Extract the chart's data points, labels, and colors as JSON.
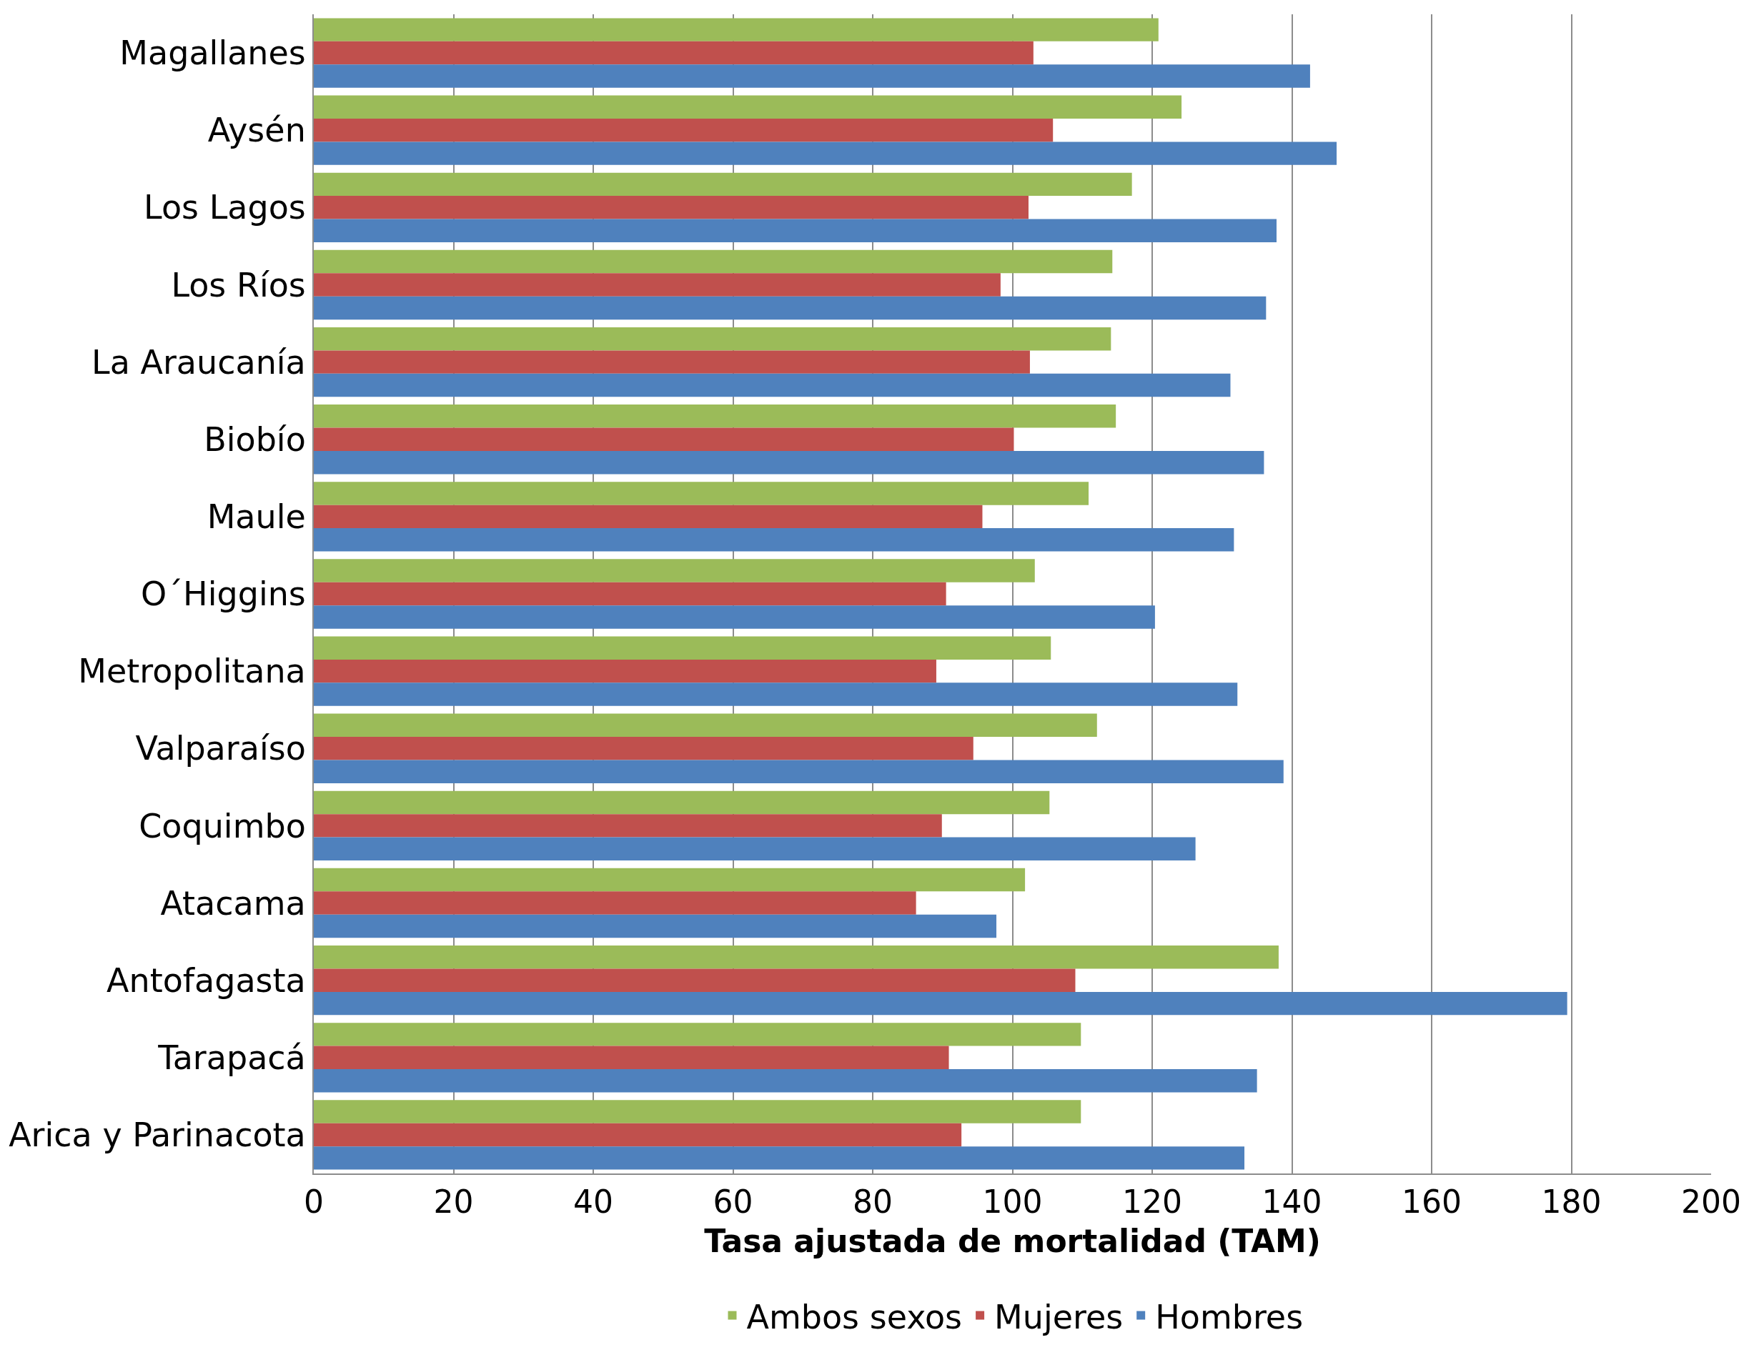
{
  "chart_data": {
    "type": "bar",
    "orientation": "horizontal",
    "xlabel": "Tasa ajustada de mortalidad (TAM)",
    "categories": [
      "Magallanes",
      "Aysén",
      "Los Lagos",
      "Los Ríos",
      "La Araucanía",
      "Biobío",
      "Maule",
      "O´Higgins",
      "Metropolitana",
      "Valparaíso",
      "Coquimbo",
      "Atacama",
      "Antofagasta",
      "Tarapacá",
      "Arica y Parinacota"
    ],
    "series": [
      {
        "name": "Ambos sexos",
        "color": "#9bbb59",
        "values": [
          120.9,
          124.2,
          117.1,
          114.3,
          114.1,
          114.8,
          110.9,
          103.2,
          105.5,
          112.1,
          105.3,
          101.8,
          138.1,
          109.8,
          109.8
        ]
      },
      {
        "name": "Mujeres",
        "color": "#c0504d",
        "values": [
          103.0,
          105.8,
          102.3,
          98.3,
          102.5,
          100.2,
          95.7,
          90.5,
          89.1,
          94.4,
          89.9,
          86.2,
          109.0,
          90.9,
          92.7
        ]
      },
      {
        "name": "Hombres",
        "color": "#4f81bd",
        "values": [
          142.6,
          146.4,
          137.8,
          136.3,
          131.2,
          136.0,
          131.7,
          120.4,
          132.2,
          138.8,
          126.2,
          97.7,
          179.4,
          135.0,
          133.2
        ]
      }
    ],
    "xlim": [
      0,
      200
    ],
    "xticks": [
      0,
      20,
      40,
      60,
      80,
      100,
      120,
      140,
      160,
      180,
      200
    ],
    "grid": "x",
    "legend": "bottom"
  }
}
